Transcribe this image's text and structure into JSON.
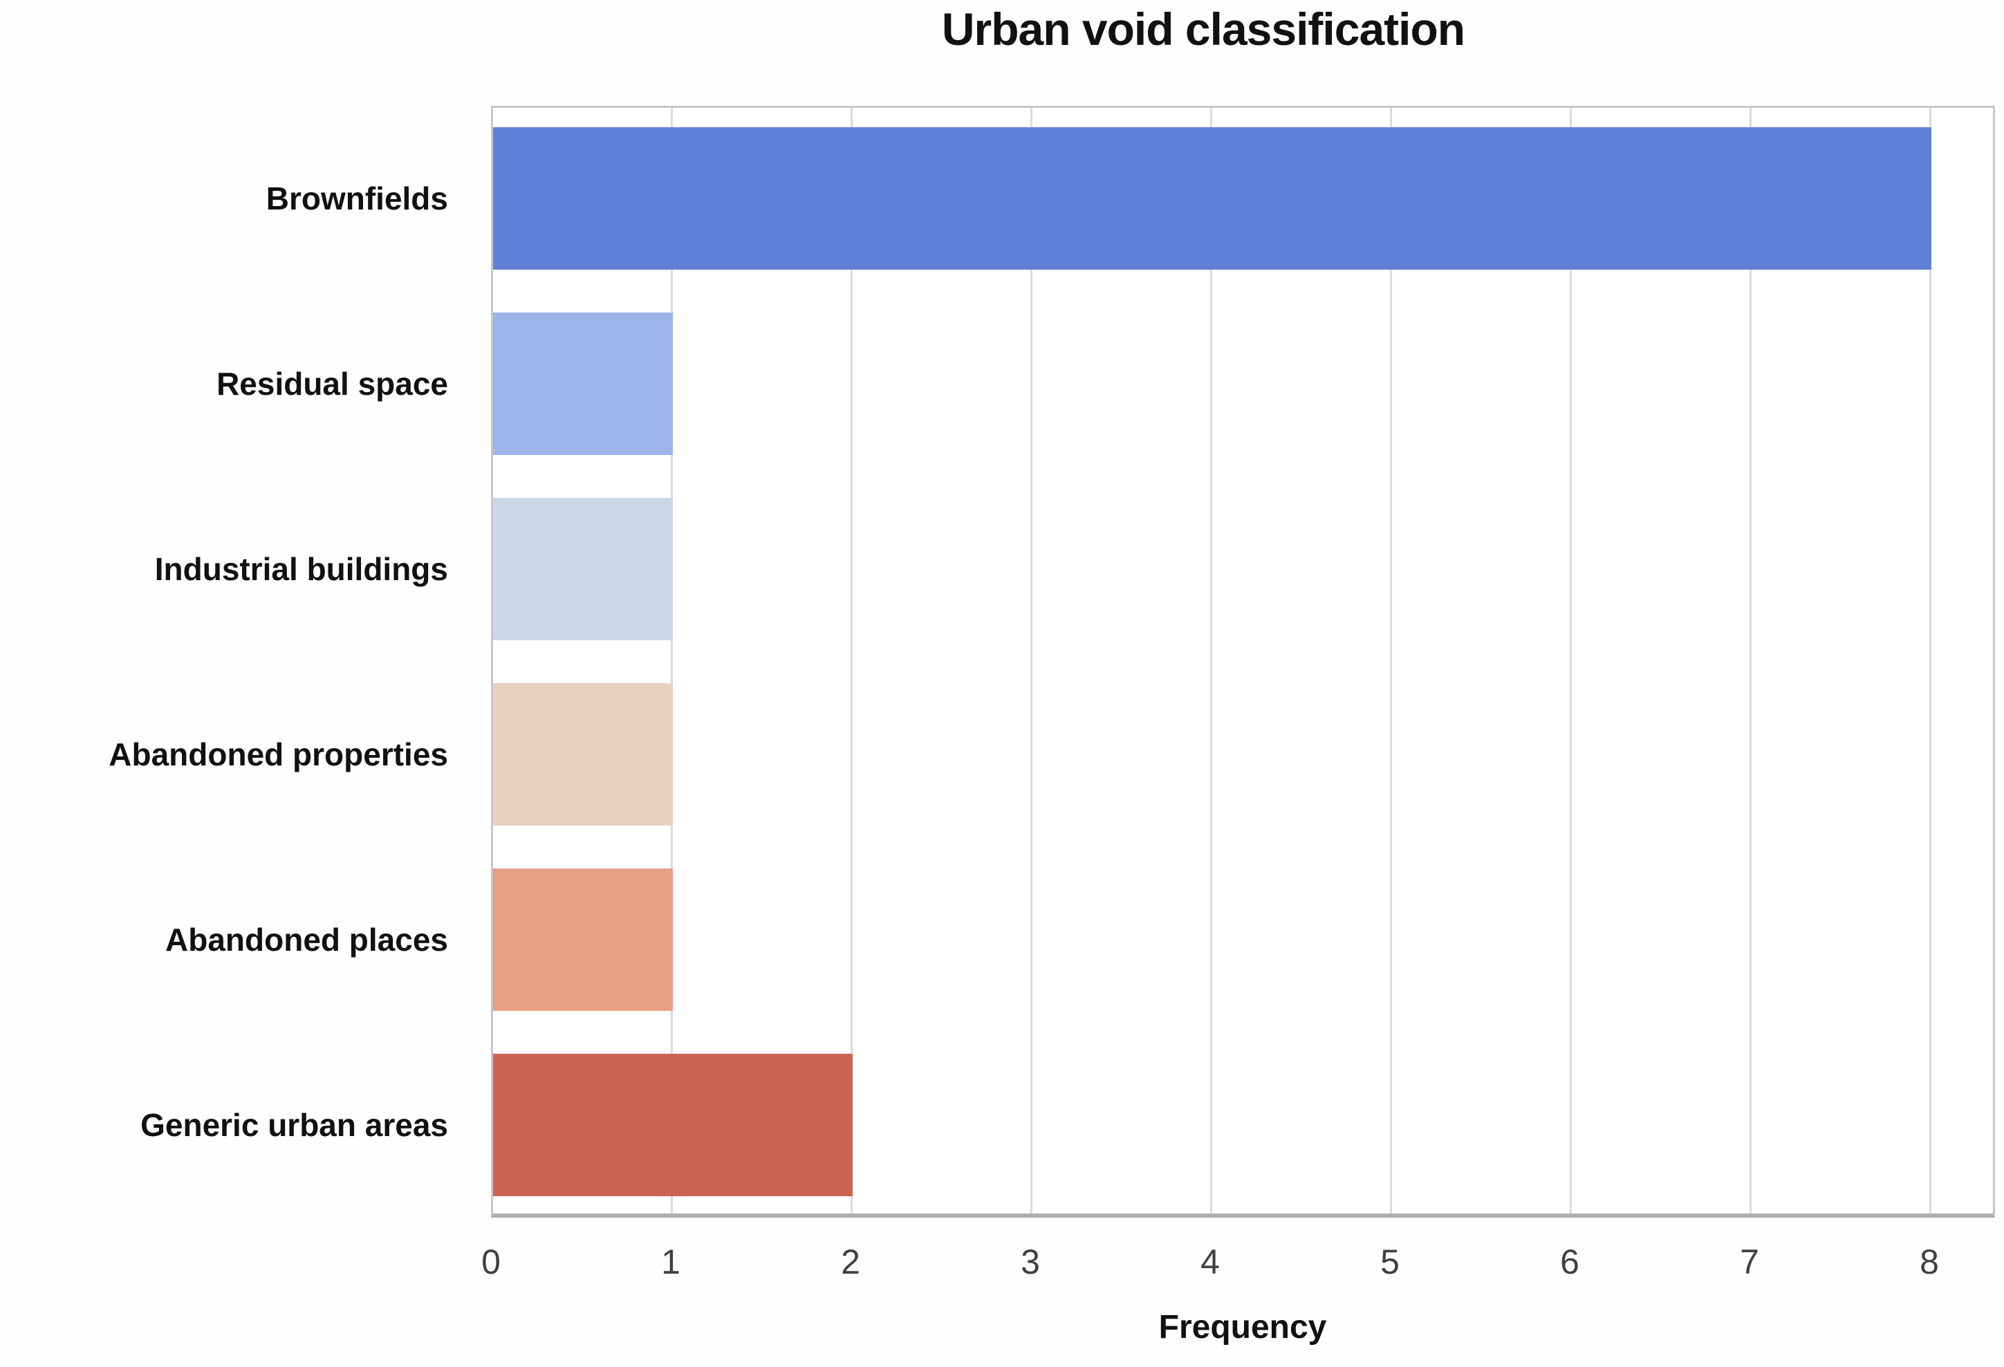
{
  "figure": {
    "title": "Urban void classification",
    "xlabel": "Frequency"
  },
  "chart_data": {
    "type": "bar",
    "orientation": "horizontal",
    "title": "Urban void classification",
    "xlabel": "Frequency",
    "ylabel": "",
    "categories": [
      "Brownfields",
      "Residual space",
      "Industrial buildings",
      "Abandoned properties",
      "Abandoned places",
      "Generic urban areas"
    ],
    "values": [
      8,
      1,
      1,
      1,
      1,
      2
    ],
    "bar_colors": [
      "#6080D8",
      "#9DB4EA",
      "#CAD7E9",
      "#E8D0C0",
      "#E69E85",
      "#CB6450"
    ],
    "xticks": [
      0,
      1,
      2,
      3,
      4,
      5,
      6,
      7,
      8
    ],
    "xlim": [
      0,
      8.37
    ],
    "grid": true,
    "gridline_axis": "x",
    "legend_position": "none"
  },
  "colors": {
    "grid": "#DADAE0",
    "plot_border": "#C6C6CB",
    "axis_line": "#AEAEB4",
    "title_text": "#111111",
    "category_text": "#111111",
    "tick_text": "#3F3F44",
    "background": "#FFFFFF"
  }
}
